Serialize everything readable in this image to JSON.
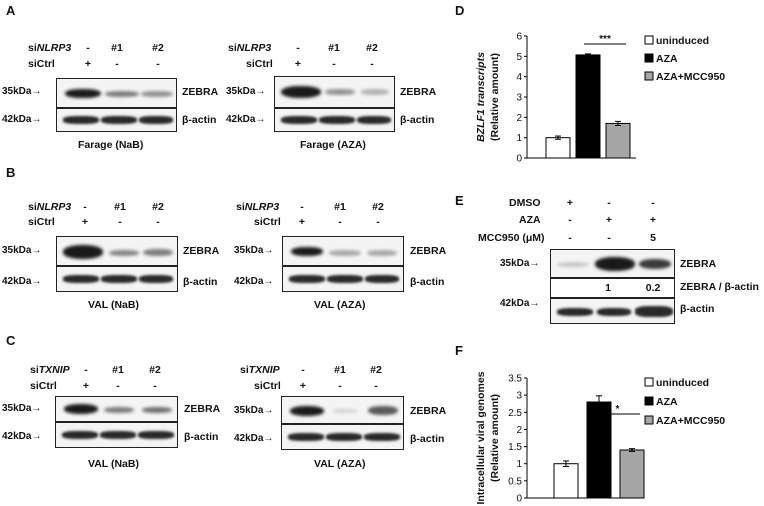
{
  "panels": {
    "A": "A",
    "B": "B",
    "C": "C",
    "D": "D",
    "E": "E",
    "F": "F"
  },
  "labels": {
    "siCtrl": "siCtrl",
    "si_prefix": "si",
    "nlrp3": "NLRP3",
    "txnip": "TXNIP",
    "zebra": "ZEBRA",
    "actin": "β-actin",
    "kda35": "35kDa",
    "kda42": "42kDa",
    "minus": "-",
    "plus": "+",
    "n1": "#1",
    "n2": "#2"
  },
  "captions": {
    "a_left": "Farage (NaB)",
    "a_right": "Farage (AZA)",
    "b_left": "VAL (NaB)",
    "b_right": "VAL (AZA)",
    "c_left": "VAL (NaB)",
    "c_right": "VAL (AZA)"
  },
  "panel_e": {
    "dmso": "DMSO",
    "aza": "AZA",
    "mcc": "MCC950 (μM)",
    "dmso_signs": [
      "+",
      "-",
      "-"
    ],
    "aza_signs": [
      "-",
      "+",
      "+"
    ],
    "mcc_signs": [
      "-",
      "-",
      "5"
    ],
    "ratio_label": "ZEBRA / β-actin",
    "ratio_values": [
      "",
      "1",
      "0.2"
    ]
  },
  "chart_data": [
    {
      "type": "bar",
      "panel": "D",
      "ylabel_line1": "BZLF1 transcripts",
      "ylabel_line2": "(Relative amount)",
      "ylim": [
        0,
        6
      ],
      "yticks": [
        "0",
        "1",
        "2",
        "3",
        "4",
        "5",
        "6"
      ],
      "series": [
        {
          "name": "uninduced",
          "values": [
            1.0
          ],
          "error": [
            0.08
          ],
          "color": "#ffffff"
        },
        {
          "name": "AZA",
          "values": [
            5.07
          ],
          "error": [
            0.05
          ],
          "color": "#000000"
        },
        {
          "name": "AZA+MCC950",
          "values": [
            1.7
          ],
          "error": [
            0.1
          ],
          "color": "#a6a6a6"
        }
      ],
      "significance": "***"
    },
    {
      "type": "bar",
      "panel": "F",
      "ylabel_line1": "Intracellular viral genomes",
      "ylabel_line2": "(Relative amount)",
      "ylim": [
        0,
        3.5
      ],
      "yticks": [
        "0",
        "0.5",
        "1",
        "1.5",
        "2",
        "2.5",
        "3",
        "3.5"
      ],
      "series": [
        {
          "name": "uninduced",
          "values": [
            1.0
          ],
          "error": [
            0.08
          ],
          "color": "#ffffff"
        },
        {
          "name": "AZA",
          "values": [
            2.8
          ],
          "error": [
            0.18
          ],
          "color": "#000000"
        },
        {
          "name": "AZA+MCC950",
          "values": [
            1.4
          ],
          "error": [
            0.04
          ],
          "color": "#a6a6a6"
        }
      ],
      "significance": "*"
    }
  ]
}
